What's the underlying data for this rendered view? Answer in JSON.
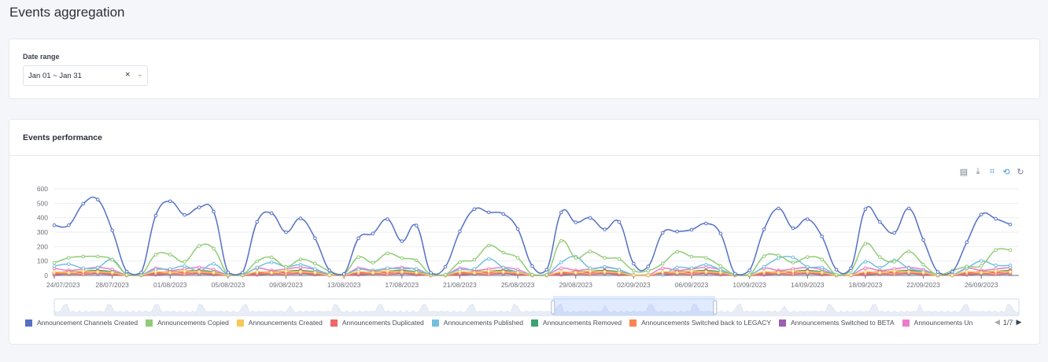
{
  "page": {
    "title": "Events aggregation"
  },
  "filters": {
    "date_range_label": "Date range",
    "date_range_value": "Jan 01 ~ Jan 31",
    "clear_icon": "×",
    "chevron_icon": "⌄"
  },
  "panel": {
    "title": "Events performance",
    "toolbox": [
      {
        "name": "data-view-icon",
        "glyph": "▤"
      },
      {
        "name": "save-image-icon",
        "glyph": "⤓"
      },
      {
        "name": "zoom-icon",
        "glyph": "⌗"
      },
      {
        "name": "zoom-reset-icon",
        "glyph": "⟲"
      },
      {
        "name": "restore-icon",
        "glyph": "↻"
      }
    ],
    "legend_pager": {
      "label": "1/7",
      "prev": "◀",
      "next": "▶"
    },
    "data_zoom": {
      "start": 0.517,
      "end": 0.685
    }
  },
  "chart_data": {
    "type": "line",
    "smooth": true,
    "ylim": [
      0,
      600
    ],
    "yticks": [
      "0",
      "100",
      "200",
      "300",
      "400",
      "500",
      "600"
    ],
    "xtick_labels": [
      "24/07/2023",
      "28/07/2023",
      "01/08/2023",
      "05/08/2023",
      "09/08/2023",
      "13/08/2023",
      "17/08/2023",
      "21/08/2023",
      "25/08/2023",
      "29/08/2023",
      "02/09/2023",
      "06/09/2023",
      "10/09/2023",
      "14/09/2023",
      "18/09/2023",
      "22/09/2023",
      "26/09/2023"
    ],
    "x_start": "24/07/2023",
    "x_end": "28/09/2023",
    "grid": true,
    "legend_position": "bottom",
    "series": [
      {
        "name": "Announcement Channels Created",
        "color": "#5470c6",
        "values": [
          348,
          348,
          497,
          526,
          313,
          27,
          20,
          415,
          514,
          420,
          472,
          442,
          20,
          20,
          371,
          431,
          300,
          395,
          258,
          35,
          10,
          257,
          291,
          390,
          237,
          346,
          18,
          60,
          305,
          459,
          437,
          426,
          322,
          65,
          40,
          437,
          368,
          399,
          319,
          371,
          82,
          62,
          295,
          304,
          317,
          360,
          290,
          12,
          35,
          319,
          464,
          328,
          390,
          270,
          40,
          51,
          459,
          371,
          295,
          464,
          246,
          24,
          25,
          230,
          422,
          393,
          353
        ]
      },
      {
        "name": "Announcements Copied",
        "color": "#91cc75",
        "values": [
          87,
          122,
          131,
          131,
          109,
          5,
          5,
          144,
          144,
          95,
          204,
          186,
          5,
          5,
          98,
          125,
          60,
          111,
          82,
          30,
          10,
          127,
          89,
          153,
          120,
          104,
          5,
          5,
          93,
          109,
          207,
          158,
          122,
          5,
          5,
          240,
          122,
          166,
          122,
          114,
          33,
          33,
          82,
          164,
          131,
          122,
          65,
          5,
          5,
          133,
          138,
          89,
          127,
          111,
          5,
          33,
          220,
          127,
          95,
          166,
          76,
          5,
          33,
          62,
          67,
          176,
          176
        ]
      },
      {
        "name": "Announcements Created",
        "color": "#fac858",
        "values": [
          25,
          20,
          30,
          25,
          20,
          2,
          2,
          25,
          20,
          30,
          25,
          20,
          2,
          2,
          25,
          20,
          30,
          25,
          20,
          2,
          2,
          25,
          20,
          30,
          25,
          20,
          2,
          2,
          25,
          20,
          30,
          25,
          20,
          2,
          2,
          25,
          20,
          30,
          25,
          20,
          2,
          2,
          25,
          20,
          30,
          25,
          20,
          2,
          2,
          25,
          20,
          30,
          25,
          20,
          2,
          2,
          25,
          20,
          30,
          25,
          20,
          2,
          2,
          25,
          20,
          30,
          25
        ]
      },
      {
        "name": "Announcements Duplicated",
        "color": "#ee6666",
        "values": [
          15,
          25,
          20,
          30,
          15,
          1,
          1,
          15,
          25,
          20,
          30,
          15,
          1,
          1,
          15,
          25,
          20,
          30,
          15,
          1,
          1,
          15,
          25,
          20,
          30,
          15,
          1,
          1,
          15,
          25,
          20,
          30,
          15,
          1,
          1,
          15,
          25,
          20,
          30,
          15,
          1,
          1,
          15,
          25,
          20,
          30,
          15,
          1,
          1,
          15,
          25,
          20,
          30,
          15,
          1,
          1,
          15,
          25,
          20,
          30,
          15,
          1,
          1,
          15,
          25,
          20,
          30
        ]
      },
      {
        "name": "Announcements Published",
        "color": "#73c0de",
        "values": [
          65,
          78,
          50,
          55,
          110,
          5,
          5,
          40,
          45,
          65,
          30,
          80,
          5,
          5,
          55,
          90,
          60,
          75,
          45,
          10,
          5,
          40,
          35,
          50,
          45,
          45,
          5,
          5,
          40,
          45,
          115,
          55,
          25,
          5,
          5,
          90,
          130,
          50,
          60,
          40,
          5,
          5,
          5,
          55,
          50,
          75,
          40,
          5,
          5,
          60,
          120,
          125,
          60,
          55,
          5,
          5,
          95,
          55,
          105,
          50,
          30,
          5,
          5,
          50,
          100,
          70,
          70
        ]
      },
      {
        "name": "Announcements Removed",
        "color": "#3ba272",
        "values": [
          20,
          25,
          30,
          35,
          25,
          2,
          2,
          20,
          25,
          30,
          35,
          25,
          2,
          2,
          20,
          25,
          30,
          35,
          25,
          2,
          2,
          20,
          25,
          30,
          35,
          25,
          2,
          2,
          20,
          25,
          30,
          35,
          25,
          2,
          2,
          20,
          25,
          30,
          35,
          25,
          2,
          2,
          20,
          25,
          30,
          35,
          25,
          2,
          2,
          20,
          25,
          30,
          35,
          25,
          2,
          2,
          20,
          25,
          30,
          35,
          25,
          2,
          2,
          20,
          25,
          30,
          35
        ]
      },
      {
        "name": "Announcements Switched back to LEGACY",
        "color": "#fc8452",
        "values": [
          10,
          15,
          10,
          20,
          10,
          1,
          1,
          10,
          15,
          10,
          20,
          10,
          1,
          1,
          10,
          15,
          10,
          20,
          10,
          1,
          1,
          10,
          15,
          10,
          20,
          10,
          1,
          1,
          10,
          15,
          10,
          20,
          10,
          1,
          1,
          10,
          15,
          10,
          20,
          10,
          1,
          1,
          10,
          15,
          10,
          20,
          10,
          1,
          1,
          10,
          15,
          10,
          20,
          10,
          1,
          1,
          10,
          15,
          10,
          20,
          10,
          1,
          1,
          10,
          15,
          10,
          20
        ]
      },
      {
        "name": "Announcements Switched to BETA",
        "color": "#9a60b4",
        "values": [
          5,
          10,
          8,
          12,
          6,
          0,
          0,
          5,
          10,
          8,
          12,
          6,
          0,
          0,
          5,
          10,
          8,
          12,
          6,
          0,
          0,
          5,
          10,
          8,
          12,
          6,
          0,
          0,
          5,
          10,
          8,
          12,
          6,
          0,
          0,
          5,
          10,
          8,
          12,
          6,
          0,
          0,
          5,
          10,
          8,
          12,
          6,
          0,
          0,
          5,
          10,
          8,
          12,
          6,
          0,
          0,
          5,
          10,
          8,
          12,
          6,
          0,
          0,
          5,
          10,
          8,
          12
        ]
      },
      {
        "name": "Announcements Un",
        "color": "#ea7ccc",
        "values": [
          50,
          35,
          45,
          55,
          40,
          3,
          3,
          50,
          35,
          45,
          55,
          40,
          3,
          3,
          50,
          35,
          45,
          55,
          40,
          3,
          3,
          50,
          35,
          45,
          55,
          40,
          3,
          3,
          50,
          35,
          45,
          55,
          40,
          3,
          3,
          50,
          35,
          45,
          55,
          40,
          3,
          3,
          50,
          35,
          45,
          55,
          40,
          3,
          3,
          50,
          35,
          45,
          55,
          40,
          3,
          3,
          50,
          35,
          45,
          55,
          40,
          3,
          3,
          50,
          35,
          45,
          55
        ]
      }
    ]
  }
}
